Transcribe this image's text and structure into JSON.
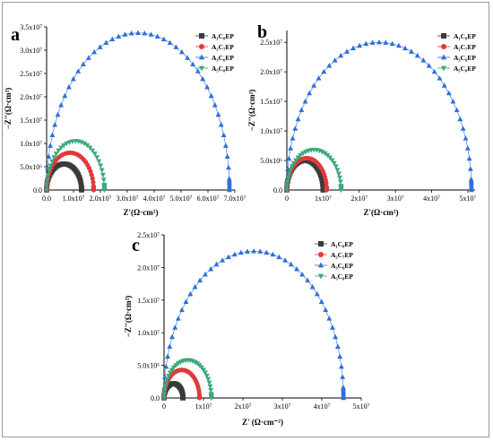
{
  "chart_data": [
    {
      "type": "scatter",
      "panel_label": "a",
      "xlabel": "Z'(Ω·cm²)",
      "ylabel": "−Z''(Ω·cm²)",
      "xlim": [
        0,
        70000000
      ],
      "ylim": [
        0,
        35000000
      ],
      "x_ticks": [
        {
          "value": 0,
          "label": "0.0"
        },
        {
          "value": 10000000,
          "label": "1.0x10⁷"
        },
        {
          "value": 20000000,
          "label": "2.0x10⁷"
        },
        {
          "value": 30000000,
          "label": "3.0x10⁷"
        },
        {
          "value": 40000000,
          "label": "4.0x10⁷"
        },
        {
          "value": 50000000,
          "label": "5.0x10⁷"
        },
        {
          "value": 60000000,
          "label": "6.0x10⁷"
        },
        {
          "value": 70000000,
          "label": "7.0x10⁷"
        }
      ],
      "y_ticks": [
        {
          "value": 0,
          "label": "0.0"
        },
        {
          "value": 5000000,
          "label": "5.0x10⁶"
        },
        {
          "value": 10000000,
          "label": "1.0x10⁷"
        },
        {
          "value": 15000000,
          "label": "1.5x10⁷"
        },
        {
          "value": 20000000,
          "label": "2.0x10⁷"
        },
        {
          "value": 25000000,
          "label": "2.5x10⁷"
        },
        {
          "value": 30000000,
          "label": "3.0x10⁷"
        },
        {
          "value": 35000000,
          "label": "3.5x10⁷"
        }
      ],
      "legend_position": "top-right",
      "series": [
        {
          "name": "A₁C₈EP",
          "color": "#3a3a3a",
          "marker": "square",
          "r_end": 13000000,
          "peak": 5600000
        },
        {
          "name": "A₂C₇EP",
          "color": "#e03a3a",
          "marker": "circle",
          "r_end": 17500000,
          "peak": 8000000
        },
        {
          "name": "A₃C₆EP",
          "color": "#2e6fd8",
          "marker": "triangle-up",
          "r_end": 68000000,
          "peak": 33700000
        },
        {
          "name": "A₅C₈EP",
          "color": "#3aaa7a",
          "marker": "triangle-down",
          "r_end": 21500000,
          "peak": 10500000
        }
      ]
    },
    {
      "type": "scatter",
      "panel_label": "b",
      "xlabel": "Z'(Ω·cm²)",
      "ylabel": "−Z''(Ω·cm²)",
      "xlim": [
        0,
        52000000
      ],
      "ylim": [
        0,
        27000000
      ],
      "x_ticks": [
        {
          "value": 0,
          "label": "0"
        },
        {
          "value": 10000000,
          "label": "1x10⁷"
        },
        {
          "value": 20000000,
          "label": "2x10⁷"
        },
        {
          "value": 30000000,
          "label": "3x10⁷"
        },
        {
          "value": 40000000,
          "label": "4x10⁷"
        },
        {
          "value": 50000000,
          "label": "5x10⁷"
        }
      ],
      "y_ticks": [
        {
          "value": 0,
          "label": "0.0"
        },
        {
          "value": 5000000,
          "label": "5.0x10⁶"
        },
        {
          "value": 10000000,
          "label": "1.0x10⁷"
        },
        {
          "value": 15000000,
          "label": "1.5x10⁷"
        },
        {
          "value": 20000000,
          "label": "2.0x10⁷"
        },
        {
          "value": 25000000,
          "label": "2.5x10⁷"
        }
      ],
      "legend_position": "top-right",
      "series": [
        {
          "name": "A₁C₈EP",
          "color": "#3a3a3a",
          "marker": "square",
          "r_end": 10000000,
          "peak": 5000000
        },
        {
          "name": "A₂C₇EP",
          "color": "#e03a3a",
          "marker": "circle",
          "r_end": 11000000,
          "peak": 5400000
        },
        {
          "name": "A₃C₆EP",
          "color": "#2e6fd8",
          "marker": "triangle-up",
          "r_end": 51000000,
          "peak": 25000000
        },
        {
          "name": "A₅C₈EP",
          "color": "#3aaa7a",
          "marker": "triangle-down",
          "r_end": 15000000,
          "peak": 6800000
        }
      ]
    },
    {
      "type": "scatter",
      "panel_label": "c",
      "xlabel": "Z' (Ω·cm⁻²)",
      "ylabel": "−Z''(Ω·cm²)",
      "xlim": [
        0,
        50000000
      ],
      "ylim": [
        0,
        25000000
      ],
      "x_ticks": [
        {
          "value": 0,
          "label": "0"
        },
        {
          "value": 10000000,
          "label": "1x10⁷"
        },
        {
          "value": 20000000,
          "label": "2x10⁷"
        },
        {
          "value": 30000000,
          "label": "3x10⁷"
        },
        {
          "value": 40000000,
          "label": "4x10⁷"
        },
        {
          "value": 50000000,
          "label": "5x10⁷"
        }
      ],
      "y_ticks": [
        {
          "value": 0,
          "label": "0.0"
        },
        {
          "value": 5000000,
          "label": "5.0x10⁶"
        },
        {
          "value": 10000000,
          "label": "1.0x10⁷"
        },
        {
          "value": 15000000,
          "label": "1.5x10⁷"
        },
        {
          "value": 20000000,
          "label": "2.0x10⁷"
        },
        {
          "value": 25000000,
          "label": "2.5x10⁷"
        }
      ],
      "legend_position": "top-right",
      "series": [
        {
          "name": "A₁C₈EP",
          "color": "#3a3a3a",
          "marker": "square",
          "r_end": 4800000,
          "peak": 2200000
        },
        {
          "name": "A₂C₇EP",
          "color": "#e03a3a",
          "marker": "circle",
          "r_end": 9000000,
          "peak": 4300000
        },
        {
          "name": "A₃C₆EP",
          "color": "#2e6fd8",
          "marker": "triangle-up",
          "r_end": 45500000,
          "peak": 22500000
        },
        {
          "name": "A₅C₈EP",
          "color": "#3aaa7a",
          "marker": "triangle-down",
          "r_end": 12000000,
          "peak": 5800000
        }
      ]
    }
  ]
}
